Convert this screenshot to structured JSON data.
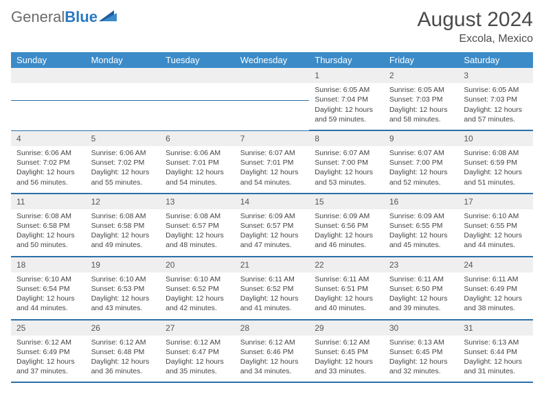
{
  "brand": {
    "part1": "General",
    "part2": "Blue"
  },
  "title": {
    "month": "August 2024",
    "location": "Excola, Mexico"
  },
  "colors": {
    "header_bg": "#3b8bc8",
    "header_text": "#ffffff",
    "daynum_bg": "#efefef",
    "row_border": "#2a6fa8",
    "text": "#444444",
    "brand_gray": "#6b6b6b",
    "brand_blue": "#2a7ac0",
    "background": "#ffffff"
  },
  "typography": {
    "title_fontsize": 30,
    "loc_fontsize": 16,
    "header_fontsize": 13,
    "daynum_fontsize": 12,
    "body_fontsize": 10.5,
    "font_family": "Arial"
  },
  "calendar": {
    "type": "table",
    "columns": [
      "Sunday",
      "Monday",
      "Tuesday",
      "Wednesday",
      "Thursday",
      "Friday",
      "Saturday"
    ],
    "weeks": [
      [
        null,
        null,
        null,
        null,
        {
          "day": "1",
          "sunrise": "6:05 AM",
          "sunset": "7:04 PM",
          "daylight": "12 hours and 59 minutes."
        },
        {
          "day": "2",
          "sunrise": "6:05 AM",
          "sunset": "7:03 PM",
          "daylight": "12 hours and 58 minutes."
        },
        {
          "day": "3",
          "sunrise": "6:05 AM",
          "sunset": "7:03 PM",
          "daylight": "12 hours and 57 minutes."
        }
      ],
      [
        {
          "day": "4",
          "sunrise": "6:06 AM",
          "sunset": "7:02 PM",
          "daylight": "12 hours and 56 minutes."
        },
        {
          "day": "5",
          "sunrise": "6:06 AM",
          "sunset": "7:02 PM",
          "daylight": "12 hours and 55 minutes."
        },
        {
          "day": "6",
          "sunrise": "6:06 AM",
          "sunset": "7:01 PM",
          "daylight": "12 hours and 54 minutes."
        },
        {
          "day": "7",
          "sunrise": "6:07 AM",
          "sunset": "7:01 PM",
          "daylight": "12 hours and 54 minutes."
        },
        {
          "day": "8",
          "sunrise": "6:07 AM",
          "sunset": "7:00 PM",
          "daylight": "12 hours and 53 minutes."
        },
        {
          "day": "9",
          "sunrise": "6:07 AM",
          "sunset": "7:00 PM",
          "daylight": "12 hours and 52 minutes."
        },
        {
          "day": "10",
          "sunrise": "6:08 AM",
          "sunset": "6:59 PM",
          "daylight": "12 hours and 51 minutes."
        }
      ],
      [
        {
          "day": "11",
          "sunrise": "6:08 AM",
          "sunset": "6:58 PM",
          "daylight": "12 hours and 50 minutes."
        },
        {
          "day": "12",
          "sunrise": "6:08 AM",
          "sunset": "6:58 PM",
          "daylight": "12 hours and 49 minutes."
        },
        {
          "day": "13",
          "sunrise": "6:08 AM",
          "sunset": "6:57 PM",
          "daylight": "12 hours and 48 minutes."
        },
        {
          "day": "14",
          "sunrise": "6:09 AM",
          "sunset": "6:57 PM",
          "daylight": "12 hours and 47 minutes."
        },
        {
          "day": "15",
          "sunrise": "6:09 AM",
          "sunset": "6:56 PM",
          "daylight": "12 hours and 46 minutes."
        },
        {
          "day": "16",
          "sunrise": "6:09 AM",
          "sunset": "6:55 PM",
          "daylight": "12 hours and 45 minutes."
        },
        {
          "day": "17",
          "sunrise": "6:10 AM",
          "sunset": "6:55 PM",
          "daylight": "12 hours and 44 minutes."
        }
      ],
      [
        {
          "day": "18",
          "sunrise": "6:10 AM",
          "sunset": "6:54 PM",
          "daylight": "12 hours and 44 minutes."
        },
        {
          "day": "19",
          "sunrise": "6:10 AM",
          "sunset": "6:53 PM",
          "daylight": "12 hours and 43 minutes."
        },
        {
          "day": "20",
          "sunrise": "6:10 AM",
          "sunset": "6:52 PM",
          "daylight": "12 hours and 42 minutes."
        },
        {
          "day": "21",
          "sunrise": "6:11 AM",
          "sunset": "6:52 PM",
          "daylight": "12 hours and 41 minutes."
        },
        {
          "day": "22",
          "sunrise": "6:11 AM",
          "sunset": "6:51 PM",
          "daylight": "12 hours and 40 minutes."
        },
        {
          "day": "23",
          "sunrise": "6:11 AM",
          "sunset": "6:50 PM",
          "daylight": "12 hours and 39 minutes."
        },
        {
          "day": "24",
          "sunrise": "6:11 AM",
          "sunset": "6:49 PM",
          "daylight": "12 hours and 38 minutes."
        }
      ],
      [
        {
          "day": "25",
          "sunrise": "6:12 AM",
          "sunset": "6:49 PM",
          "daylight": "12 hours and 37 minutes."
        },
        {
          "day": "26",
          "sunrise": "6:12 AM",
          "sunset": "6:48 PM",
          "daylight": "12 hours and 36 minutes."
        },
        {
          "day": "27",
          "sunrise": "6:12 AM",
          "sunset": "6:47 PM",
          "daylight": "12 hours and 35 minutes."
        },
        {
          "day": "28",
          "sunrise": "6:12 AM",
          "sunset": "6:46 PM",
          "daylight": "12 hours and 34 minutes."
        },
        {
          "day": "29",
          "sunrise": "6:12 AM",
          "sunset": "6:45 PM",
          "daylight": "12 hours and 33 minutes."
        },
        {
          "day": "30",
          "sunrise": "6:13 AM",
          "sunset": "6:45 PM",
          "daylight": "12 hours and 32 minutes."
        },
        {
          "day": "31",
          "sunrise": "6:13 AM",
          "sunset": "6:44 PM",
          "daylight": "12 hours and 31 minutes."
        }
      ]
    ],
    "labels": {
      "sunrise": "Sunrise:",
      "sunset": "Sunset:",
      "daylight": "Daylight:"
    }
  }
}
